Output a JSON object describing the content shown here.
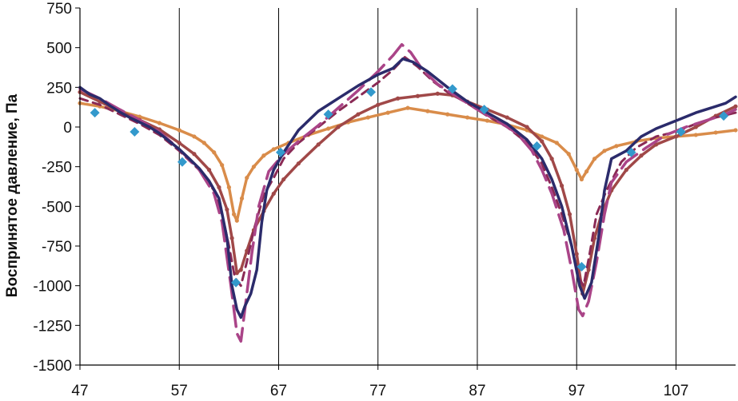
{
  "chart_data": {
    "type": "line",
    "title": "",
    "xlabel": "",
    "ylabel": "Воспринятое давление, Па",
    "xlim": [
      47,
      113
    ],
    "ylim": [
      -1500,
      750
    ],
    "x_ticks": [
      "47",
      "57",
      "67",
      "77",
      "87",
      "97",
      "107"
    ],
    "y_ticks": [
      "750",
      "500",
      "250",
      "0",
      "-250",
      "-500",
      "-750",
      "-1000",
      "-1250",
      "-1500"
    ],
    "grid": "vertical",
    "legend": "none",
    "series": [
      {
        "color": "#2b2b6b",
        "style": "solid",
        "points": [
          [
            47,
            250
          ],
          [
            48,
            205
          ],
          [
            49,
            180
          ],
          [
            50,
            135
          ],
          [
            51,
            95
          ],
          [
            52,
            60
          ],
          [
            53,
            30
          ],
          [
            54,
            0
          ],
          [
            55,
            -40
          ],
          [
            56,
            -90
          ],
          [
            57,
            -140
          ],
          [
            58,
            -200
          ],
          [
            59,
            -260
          ],
          [
            60,
            -340
          ],
          [
            61,
            -450
          ],
          [
            61.8,
            -700
          ],
          [
            62.3,
            -1000
          ],
          [
            62.8,
            -1150
          ],
          [
            63.2,
            -1200
          ],
          [
            63.6,
            -1130
          ],
          [
            64.2,
            -1050
          ],
          [
            64.8,
            -900
          ],
          [
            65.3,
            -600
          ],
          [
            65.8,
            -400
          ],
          [
            66.5,
            -270
          ],
          [
            67.5,
            -160
          ],
          [
            69,
            -20
          ],
          [
            71,
            100
          ],
          [
            73,
            180
          ],
          [
            75,
            260
          ],
          [
            77,
            330
          ],
          [
            78.5,
            370
          ],
          [
            79.5,
            430
          ],
          [
            80.5,
            410
          ],
          [
            82,
            350
          ],
          [
            84,
            250
          ],
          [
            86,
            160
          ],
          [
            88,
            90
          ],
          [
            90,
            20
          ],
          [
            92,
            -80
          ],
          [
            93.5,
            -200
          ],
          [
            94.5,
            -330
          ],
          [
            95.5,
            -500
          ],
          [
            96.5,
            -750
          ],
          [
            97.3,
            -1000
          ],
          [
            97.8,
            -1080
          ],
          [
            98.5,
            -980
          ],
          [
            99.2,
            -700
          ],
          [
            99.8,
            -400
          ],
          [
            100.5,
            -200
          ],
          [
            102,
            -150
          ],
          [
            103.5,
            -60
          ],
          [
            105,
            -10
          ],
          [
            107,
            40
          ],
          [
            109,
            90
          ],
          [
            110.5,
            120
          ],
          [
            112,
            150
          ],
          [
            113,
            190
          ]
        ]
      },
      {
        "color": "#aa4488",
        "style": "long-dash",
        "points": [
          [
            47,
            240
          ],
          [
            49,
            180
          ],
          [
            51,
            110
          ],
          [
            53,
            45
          ],
          [
            55,
            -30
          ],
          [
            57,
            -140
          ],
          [
            59,
            -270
          ],
          [
            60.5,
            -420
          ],
          [
            61.3,
            -600
          ],
          [
            62.2,
            -1000
          ],
          [
            62.8,
            -1300
          ],
          [
            63.2,
            -1350
          ],
          [
            63.7,
            -1100
          ],
          [
            64.3,
            -800
          ],
          [
            65,
            -500
          ],
          [
            66,
            -280
          ],
          [
            67.5,
            -170
          ],
          [
            69,
            -90
          ],
          [
            71,
            10
          ],
          [
            73,
            120
          ],
          [
            75,
            230
          ],
          [
            77,
            350
          ],
          [
            78.5,
            450
          ],
          [
            79.4,
            520
          ],
          [
            80.3,
            470
          ],
          [
            81.5,
            360
          ],
          [
            83,
            270
          ],
          [
            85,
            190
          ],
          [
            87,
            110
          ],
          [
            89,
            40
          ],
          [
            91,
            -40
          ],
          [
            92.5,
            -150
          ],
          [
            93.5,
            -270
          ],
          [
            94.5,
            -420
          ],
          [
            95.7,
            -650
          ],
          [
            96.5,
            -900
          ],
          [
            97.2,
            -1150
          ],
          [
            97.6,
            -1190
          ],
          [
            98.2,
            -1100
          ],
          [
            99,
            -850
          ],
          [
            99.8,
            -550
          ],
          [
            100.5,
            -350
          ],
          [
            102,
            -220
          ],
          [
            104,
            -130
          ],
          [
            106,
            -50
          ],
          [
            108,
            0
          ],
          [
            110,
            40
          ],
          [
            112,
            80
          ],
          [
            113,
            110
          ]
        ]
      },
      {
        "color": "#8a2a55",
        "style": "short-dash",
        "points": [
          [
            47,
            180
          ],
          [
            49,
            140
          ],
          [
            51,
            80
          ],
          [
            53,
            20
          ],
          [
            55,
            -50
          ],
          [
            57,
            -150
          ],
          [
            59,
            -270
          ],
          [
            60.5,
            -400
          ],
          [
            61.3,
            -550
          ],
          [
            62,
            -750
          ],
          [
            62.6,
            -950
          ],
          [
            63.2,
            -1000
          ],
          [
            63.8,
            -850
          ],
          [
            64.5,
            -650
          ],
          [
            65.5,
            -430
          ],
          [
            66.5,
            -320
          ],
          [
            67.5,
            -200
          ],
          [
            69,
            -100
          ],
          [
            71,
            0
          ],
          [
            73,
            100
          ],
          [
            75,
            190
          ],
          [
            77,
            280
          ],
          [
            78.5,
            360
          ],
          [
            79.7,
            440
          ],
          [
            81,
            380
          ],
          [
            82.5,
            290
          ],
          [
            84,
            220
          ],
          [
            86,
            150
          ],
          [
            88,
            70
          ],
          [
            90,
            0
          ],
          [
            92,
            -100
          ],
          [
            93.5,
            -230
          ],
          [
            94.5,
            -380
          ],
          [
            95.5,
            -550
          ],
          [
            96.5,
            -750
          ],
          [
            97.2,
            -950
          ],
          [
            97.7,
            -1000
          ],
          [
            98.3,
            -800
          ],
          [
            99,
            -550
          ],
          [
            100,
            -400
          ],
          [
            101.5,
            -220
          ],
          [
            103,
            -130
          ],
          [
            105,
            -60
          ],
          [
            107,
            -30
          ],
          [
            109,
            20
          ],
          [
            111,
            60
          ],
          [
            113,
            90
          ]
        ]
      },
      {
        "color": "#3399cc",
        "style": "diamonds",
        "points": [
          [
            48.5,
            90
          ],
          [
            52.5,
            -30
          ],
          [
            57.3,
            -220
          ],
          [
            62.7,
            -980
          ],
          [
            67.2,
            -160
          ],
          [
            72,
            80
          ],
          [
            76.3,
            220
          ],
          [
            84.5,
            240
          ],
          [
            87.7,
            110
          ],
          [
            93,
            -120
          ],
          [
            97.5,
            -880
          ],
          [
            102.5,
            -160
          ],
          [
            107.5,
            -30
          ],
          [
            111.8,
            70
          ]
        ]
      },
      {
        "color": "#a04848",
        "style": "solid-markers",
        "points": [
          [
            47,
            220
          ],
          [
            49,
            160
          ],
          [
            51,
            100
          ],
          [
            53,
            45
          ],
          [
            55,
            -15
          ],
          [
            57,
            -100
          ],
          [
            58.5,
            -170
          ],
          [
            60,
            -270
          ],
          [
            61,
            -380
          ],
          [
            61.8,
            -520
          ],
          [
            62.3,
            -700
          ],
          [
            62.8,
            -920
          ],
          [
            63.2,
            -900
          ],
          [
            63.8,
            -780
          ],
          [
            64.5,
            -650
          ],
          [
            65.5,
            -530
          ],
          [
            66.5,
            -420
          ],
          [
            67.5,
            -330
          ],
          [
            69,
            -230
          ],
          [
            71,
            -110
          ],
          [
            73,
            0
          ],
          [
            75,
            80
          ],
          [
            77,
            140
          ],
          [
            79,
            180
          ],
          [
            81,
            195
          ],
          [
            83,
            210
          ],
          [
            84.5,
            200
          ],
          [
            86,
            160
          ],
          [
            88,
            110
          ],
          [
            90,
            60
          ],
          [
            92,
            0
          ],
          [
            93.5,
            -90
          ],
          [
            94.5,
            -200
          ],
          [
            95.5,
            -370
          ],
          [
            96.3,
            -550
          ],
          [
            97,
            -800
          ],
          [
            97.6,
            -1050
          ],
          [
            98.2,
            -900
          ],
          [
            98.8,
            -700
          ],
          [
            99.5,
            -550
          ],
          [
            100.5,
            -400
          ],
          [
            102,
            -270
          ],
          [
            103.5,
            -180
          ],
          [
            105,
            -110
          ],
          [
            107,
            -60
          ],
          [
            109,
            0
          ],
          [
            111,
            70
          ],
          [
            113,
            130
          ]
        ]
      },
      {
        "color": "#d98c4a",
        "style": "solid-markers",
        "points": [
          [
            47,
            150
          ],
          [
            49,
            130
          ],
          [
            51,
            100
          ],
          [
            53,
            65
          ],
          [
            55,
            25
          ],
          [
            57,
            -20
          ],
          [
            58.5,
            -60
          ],
          [
            59.5,
            -100
          ],
          [
            60.5,
            -160
          ],
          [
            61.3,
            -240
          ],
          [
            62,
            -380
          ],
          [
            62.5,
            -550
          ],
          [
            62.8,
            -590
          ],
          [
            63.3,
            -450
          ],
          [
            63.8,
            -320
          ],
          [
            64.5,
            -250
          ],
          [
            65.5,
            -180
          ],
          [
            66.5,
            -140
          ],
          [
            68,
            -100
          ],
          [
            70,
            -50
          ],
          [
            72,
            -10
          ],
          [
            74,
            30
          ],
          [
            76,
            60
          ],
          [
            78,
            90
          ],
          [
            80,
            120
          ],
          [
            82,
            100
          ],
          [
            84,
            80
          ],
          [
            86,
            60
          ],
          [
            88,
            40
          ],
          [
            90,
            15
          ],
          [
            92,
            -20
          ],
          [
            93.5,
            -60
          ],
          [
            95,
            -100
          ],
          [
            96.2,
            -170
          ],
          [
            97,
            -270
          ],
          [
            97.5,
            -330
          ],
          [
            98,
            -280
          ],
          [
            98.8,
            -200
          ],
          [
            99.8,
            -150
          ],
          [
            101,
            -120
          ],
          [
            103,
            -90
          ],
          [
            105,
            -70
          ],
          [
            107,
            -60
          ],
          [
            109,
            -50
          ],
          [
            111,
            -35
          ],
          [
            113,
            -20
          ]
        ]
      }
    ]
  }
}
